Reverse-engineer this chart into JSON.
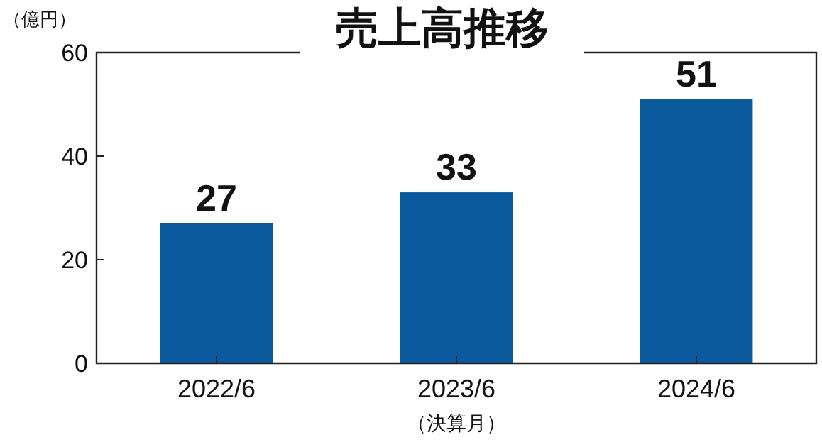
{
  "chart_data": {
    "type": "bar",
    "title": "売上高推移",
    "ylabel": "（億円）",
    "xlabel": "（決算月）",
    "categories": [
      "2022/6",
      "2023/6",
      "2024/6"
    ],
    "values": [
      27,
      33,
      51
    ],
    "color": "#0b5a9e",
    "ylim": [
      0,
      60
    ],
    "yticks": [
      0,
      20,
      40,
      60
    ],
    "data_labels": true
  }
}
